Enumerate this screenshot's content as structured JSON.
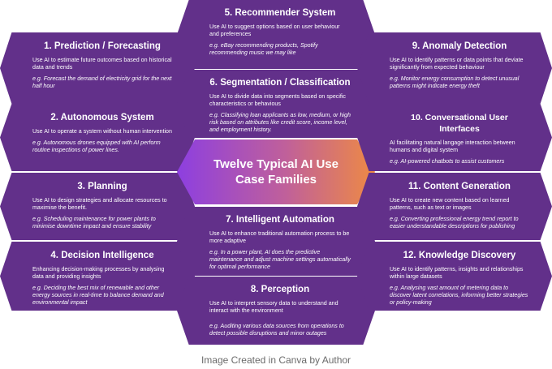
{
  "center_title": "Twelve Typical AI Use Case Families",
  "caption": "Image Created in Canva by Author",
  "cards": [
    {
      "id": "c1",
      "title": "1. Prediction / Forecasting",
      "desc": "Use AI to estimate future outcomes based on historical data and trends",
      "example": "e.g. Forecast the demand of electricity grid for the next half hour"
    },
    {
      "id": "c2",
      "title": "2. Autonomous System",
      "desc": "Use AI to operate a system without human intervention",
      "example": "e.g. Autonomous drones equipped with AI perform routine inspections of power lines."
    },
    {
      "id": "c3",
      "title": "3. Planning",
      "desc": "Use AI to design strategies and allocate resources to maximise the benefit.",
      "example": "e.g. Scheduling maintenance for power plants to minimise downtime impact and ensure stability"
    },
    {
      "id": "c4",
      "title": "4. Decision Intelligence",
      "desc": "Enhancing decision-making processes by analysing data and providing insights",
      "example": "e.g. Deciding the best mix of renewable and other energy sources in real-time to balance demand and environmental impact"
    },
    {
      "id": "c5",
      "title": "5. Recommender System",
      "desc": "Use AI to suggest options based on user behaviour and preferences",
      "example": "e.g. eBay recommending products, Spotify recommending music we may like"
    },
    {
      "id": "c6",
      "title": "6. Segmentation / Classification",
      "desc": "Use AI to divide data into segments based on specific characteristics or behavious",
      "example": "e.g. Classifying loan applicants as low, medium, or high risk based on attributes like credit score, income level, and employment history."
    },
    {
      "id": "c7",
      "title": "7. Intelligent Automation",
      "desc": "Use AI to enhance traditional automation process to be more adaptive",
      "example": "e.g. In a power plant, AI does the predictive maintenance and adjust machine settings automatically for optimal performance"
    },
    {
      "id": "c8",
      "title": "8. Perception",
      "desc": "Use AI to interpret sensory data to understand and interact with the environment",
      "example": "e.g. Auditing various data sources from operations to detect possible disruptions and minor outages"
    },
    {
      "id": "c9",
      "title": "9. Anomaly Detection",
      "desc": "Use AI to identify patterns or data points that deviate significantly from expected behaviour",
      "example": "e.g. Monitor energy consumption to detect unusual patterns might indicate energy theft"
    },
    {
      "id": "c10",
      "title": "10. Conversational User Interfaces",
      "desc": "AI facilitating natural langage interaction between humans and digital system",
      "example": "e.g. AI-powered chatbots to assist customers"
    },
    {
      "id": "c11",
      "title": "11. Content Generation",
      "desc": "Use AI to create new content based on learned patterns, such as text or images",
      "example": "e.g. Converting professional energy trend report to easier understandable descriptions for publishing"
    },
    {
      "id": "c12",
      "title": "12. Knowledge Discovery",
      "desc": "Use AI to identify patterns, insights and relationships within large datasets",
      "example": "e.g. Analysing vast amount of metering data to discover latent correlations, informing better strategies or policy-making"
    }
  ]
}
